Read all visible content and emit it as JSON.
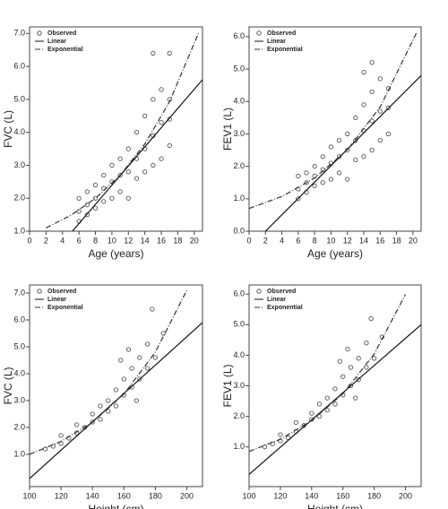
{
  "chart_data": [
    {
      "type": "scatter",
      "x_label": "Age (years)",
      "y_label": "FVC (L)",
      "legend": "upper left",
      "xlim": [
        0,
        21
      ],
      "ylim": [
        1,
        7.2
      ],
      "xticks": [
        0,
        2,
        4,
        6,
        8,
        10,
        12,
        14,
        16,
        18,
        20
      ],
      "yticks": [
        {
          "value": 1,
          "label": "1.0"
        },
        {
          "value": 2,
          "label": "2.0"
        },
        {
          "value": 3,
          "label": "3.0"
        },
        {
          "value": 4,
          "label": "4.0"
        },
        {
          "value": 5,
          "label": "5.0"
        },
        {
          "value": 6,
          "label": "6.0"
        },
        {
          "value": 7,
          "label": "7.0"
        }
      ],
      "series": [
        {
          "name": "Observed",
          "color": "#555555",
          "x": [
            6,
            6,
            6,
            7,
            7,
            7,
            8,
            8,
            8,
            9,
            9,
            9,
            10,
            10,
            10,
            11,
            11,
            11,
            12,
            12,
            12,
            13,
            13,
            13,
            14,
            14,
            14,
            15,
            15,
            15,
            15,
            16,
            16,
            16,
            17,
            17,
            17,
            17
          ],
          "values": [
            1.3,
            1.6,
            2.0,
            1.5,
            1.8,
            2.2,
            1.7,
            2.0,
            2.4,
            1.9,
            2.3,
            2.7,
            2.0,
            2.5,
            3.0,
            2.2,
            2.7,
            3.2,
            2.0,
            2.8,
            3.5,
            2.6,
            3.2,
            4.0,
            2.8,
            3.5,
            4.5,
            3.0,
            3.9,
            5.0,
            6.4,
            3.2,
            4.3,
            5.3,
            3.6,
            4.4,
            5.0,
            6.4
          ]
        },
        {
          "name": "Linear",
          "color": "#111111",
          "x": [
            5.2,
            21
          ],
          "values": [
            1.0,
            5.6
          ]
        },
        {
          "name": "Exponential",
          "color": "#333333",
          "x": [
            2,
            5,
            8,
            11,
            14,
            17,
            20.5
          ],
          "values": [
            1.1,
            1.48,
            2.0,
            2.7,
            3.65,
            4.93,
            7.0
          ]
        }
      ]
    },
    {
      "type": "scatter",
      "x_label": "Age (years)",
      "y_label": "FEV1 (L)",
      "legend": "upper left",
      "xlim": [
        0,
        21
      ],
      "ylim": [
        0,
        6.3
      ],
      "xticks": [
        0,
        2,
        4,
        6,
        8,
        10,
        12,
        14,
        16,
        18,
        20
      ],
      "yticks": [
        {
          "value": 0,
          "label": "0.0"
        },
        {
          "value": 1,
          "label": "1.0"
        },
        {
          "value": 2,
          "label": "2.0"
        },
        {
          "value": 3,
          "label": "3.0"
        },
        {
          "value": 4,
          "label": "4.0"
        },
        {
          "value": 5,
          "label": "5.0"
        },
        {
          "value": 6,
          "label": "6.0"
        }
      ],
      "series": [
        {
          "name": "Observed",
          "color": "#555555",
          "x": [
            6,
            6,
            6,
            7,
            7,
            7,
            8,
            8,
            8,
            9,
            9,
            9,
            10,
            10,
            10,
            11,
            11,
            11,
            12,
            12,
            12,
            13,
            13,
            13,
            14,
            14,
            14,
            14,
            15,
            15,
            15,
            15,
            16,
            16,
            16,
            17,
            17,
            17
          ],
          "values": [
            1.0,
            1.3,
            1.7,
            1.2,
            1.5,
            1.8,
            1.4,
            1.7,
            2.0,
            1.5,
            1.9,
            2.3,
            1.6,
            2.1,
            2.6,
            1.8,
            2.3,
            2.8,
            1.6,
            2.5,
            3.0,
            2.2,
            2.8,
            3.5,
            2.3,
            3.1,
            3.9,
            4.9,
            2.5,
            3.4,
            4.3,
            5.2,
            2.8,
            3.7,
            4.7,
            3.0,
            3.8,
            4.4
          ]
        },
        {
          "name": "Linear",
          "color": "#111111",
          "x": [
            2,
            21
          ],
          "values": [
            0,
            4.8
          ]
        },
        {
          "name": "Exponential",
          "color": "#333333",
          "x": [
            0,
            4,
            8,
            12,
            16,
            20.5
          ],
          "values": [
            0.7,
            1.07,
            1.64,
            2.51,
            3.83,
            6.15
          ]
        }
      ]
    },
    {
      "type": "scatter",
      "x_label": "Height (cm)",
      "y_label": "FVC (L)",
      "legend": "upper left",
      "xlim": [
        100,
        210
      ],
      "ylim": [
        -0.2,
        7.3
      ],
      "xticks": [
        100,
        120,
        140,
        160,
        180,
        200
      ],
      "yticks": [
        {
          "value": 1,
          "label": "1.0"
        },
        {
          "value": 2,
          "label": "2.0"
        },
        {
          "value": 3,
          "label": "3.0"
        },
        {
          "value": 4,
          "label": "4.0"
        },
        {
          "value": 5,
          "label": "5.0"
        },
        {
          "value": 6,
          "label": "6.0"
        },
        {
          "value": 7,
          "label": "7.0"
        }
      ],
      "series": [
        {
          "name": "Observed",
          "color": "#555555",
          "x": [
            110,
            115,
            120,
            120,
            125,
            130,
            130,
            135,
            140,
            140,
            145,
            145,
            150,
            150,
            155,
            155,
            160,
            160,
            165,
            165,
            170,
            170,
            175,
            175,
            178,
            180,
            185,
            163,
            168,
            158
          ],
          "values": [
            1.2,
            1.3,
            1.4,
            1.7,
            1.6,
            1.8,
            2.1,
            2.0,
            2.2,
            2.5,
            2.3,
            2.8,
            2.6,
            3.0,
            2.8,
            3.4,
            3.2,
            3.8,
            3.5,
            4.2,
            3.8,
            4.6,
            4.2,
            5.1,
            6.4,
            4.6,
            5.5,
            4.9,
            3.0,
            4.5
          ]
        },
        {
          "name": "Linear",
          "color": "#111111",
          "x": [
            100,
            210
          ],
          "values": [
            0.1,
            5.9
          ]
        },
        {
          "name": "Exponential",
          "color": "#333333",
          "x": [
            100,
            120,
            140,
            160,
            180,
            200
          ],
          "values": [
            1.0,
            1.48,
            2.19,
            3.24,
            4.8,
            7.1
          ]
        }
      ]
    },
    {
      "type": "scatter",
      "x_label": "Height (cm)",
      "y_label": "FEV1 (L)",
      "legend": "upper left",
      "xlim": [
        100,
        210
      ],
      "ylim": [
        -0.3,
        6.3
      ],
      "xticks": [
        100,
        120,
        140,
        160,
        180,
        200
      ],
      "yticks": [
        {
          "value": 1,
          "label": "1.0"
        },
        {
          "value": 2,
          "label": "2.0"
        },
        {
          "value": 3,
          "label": "3.0"
        },
        {
          "value": 4,
          "label": "4.0"
        },
        {
          "value": 5,
          "label": "5.0"
        },
        {
          "value": 6,
          "label": "6.0"
        }
      ],
      "series": [
        {
          "name": "Observed",
          "color": "#555555",
          "x": [
            110,
            115,
            120,
            120,
            125,
            130,
            130,
            135,
            140,
            140,
            145,
            145,
            150,
            150,
            155,
            155,
            160,
            160,
            165,
            165,
            170,
            170,
            175,
            175,
            178,
            180,
            185,
            163,
            168,
            158
          ],
          "values": [
            1.0,
            1.1,
            1.2,
            1.4,
            1.3,
            1.5,
            1.8,
            1.7,
            1.9,
            2.1,
            2.0,
            2.4,
            2.2,
            2.6,
            2.4,
            2.9,
            2.7,
            3.3,
            3.0,
            3.6,
            3.2,
            3.9,
            3.6,
            4.4,
            5.2,
            3.9,
            4.6,
            4.2,
            2.6,
            3.8
          ]
        },
        {
          "name": "Linear",
          "color": "#111111",
          "x": [
            100,
            210
          ],
          "values": [
            0.1,
            5.0
          ]
        },
        {
          "name": "Exponential",
          "color": "#333333",
          "x": [
            100,
            120,
            140,
            160,
            180,
            200
          ],
          "values": [
            0.85,
            1.25,
            1.86,
            2.74,
            4.04,
            5.99
          ]
        }
      ]
    }
  ]
}
